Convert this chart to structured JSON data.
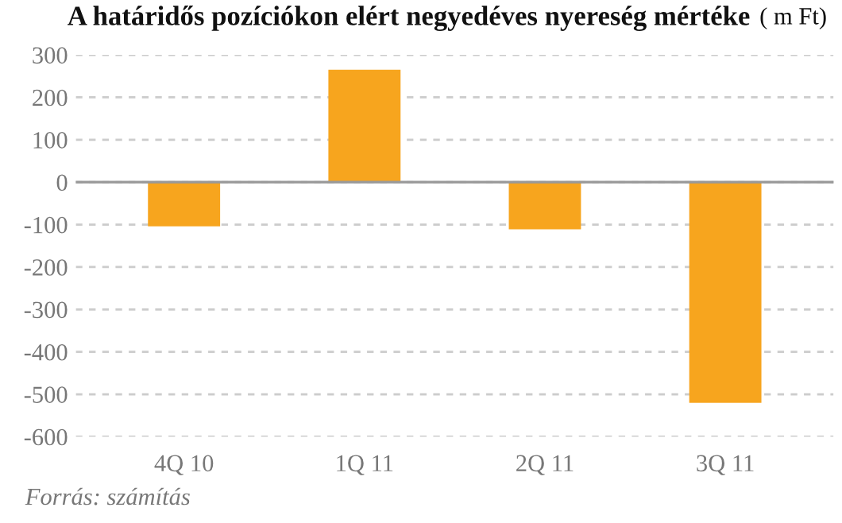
{
  "chart_data": {
    "type": "bar",
    "title": "A határidős pozíciókon elért negyedéves nyereség mértéke",
    "subtitle": "( m Ft)",
    "categories": [
      "4Q 10",
      "1Q 11",
      "2Q 11",
      "3Q 11"
    ],
    "values": [
      -104,
      265,
      -111,
      -520
    ],
    "color": "#f7a51e",
    "ylim": [
      -600,
      300
    ],
    "yticks": [
      -600,
      -500,
      -400,
      -300,
      -200,
      -100,
      0,
      100,
      200,
      300
    ],
    "grid": "y",
    "ref_lines": [
      {
        "axis": "y",
        "value": 0,
        "color": "#999999"
      }
    ],
    "annotations": [
      "Forrás: számítás"
    ]
  }
}
